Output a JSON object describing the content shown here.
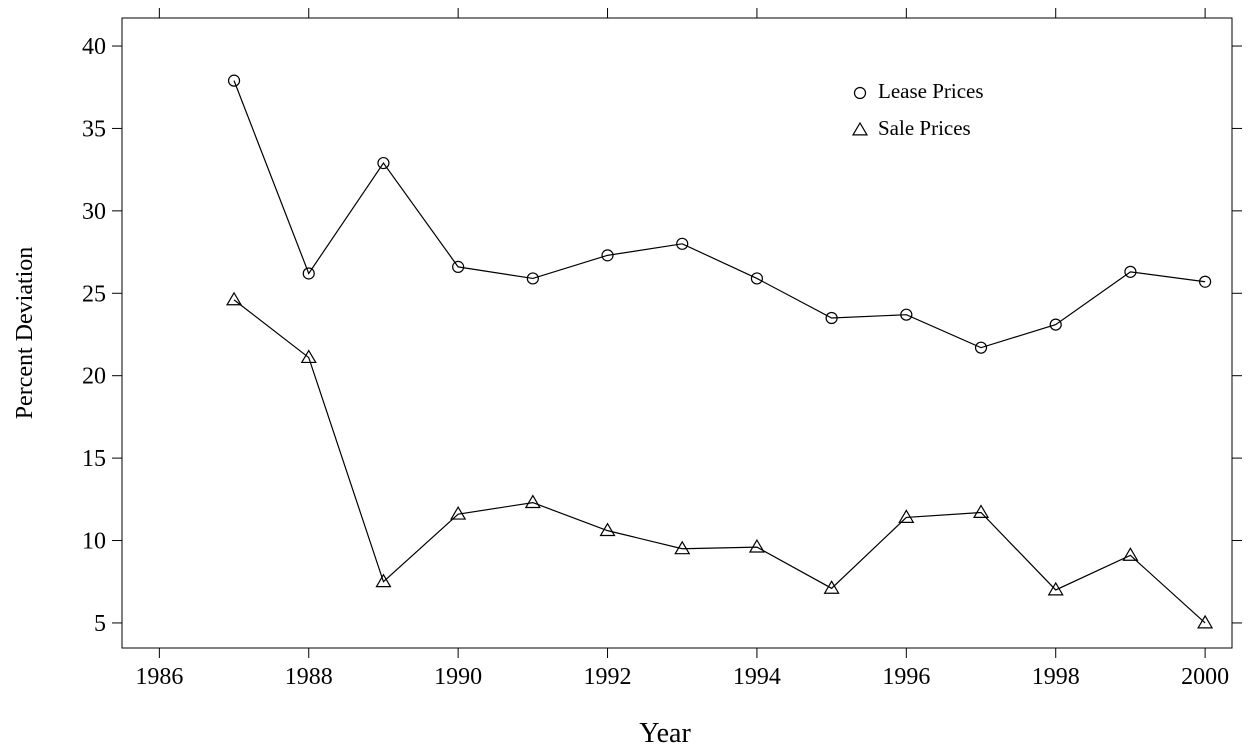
{
  "chart_data": {
    "type": "line",
    "x_label": "Year",
    "y_label": "Percent Deviation",
    "x": [
      1987,
      1988,
      1989,
      1990,
      1991,
      1992,
      1993,
      1994,
      1995,
      1996,
      1997,
      1998,
      1999,
      2000
    ],
    "series": [
      {
        "name": "Lease Prices",
        "color": "#000000",
        "marker": "circle",
        "values": [
          37.9,
          26.2,
          32.9,
          26.6,
          25.9,
          27.3,
          28.0,
          25.9,
          23.5,
          23.7,
          21.7,
          23.1,
          26.3,
          25.7
        ]
      },
      {
        "name": "Sale Prices",
        "color": "#000000",
        "marker": "triangle",
        "values": [
          24.6,
          21.1,
          7.5,
          11.6,
          12.3,
          10.6,
          9.5,
          9.6,
          7.1,
          11.4,
          11.7,
          7.0,
          9.1,
          5.0
        ]
      }
    ],
    "xlim": [
      1985.5,
      2000.36
    ],
    "xticks": [
      1986,
      1988,
      1990,
      1992,
      1994,
      1996,
      1998,
      2000
    ],
    "ylim": [
      3.48,
      41.7
    ],
    "yticks": [
      5,
      10,
      15,
      20,
      25,
      30,
      35,
      40
    ],
    "legend": "top-right",
    "grid": false
  }
}
